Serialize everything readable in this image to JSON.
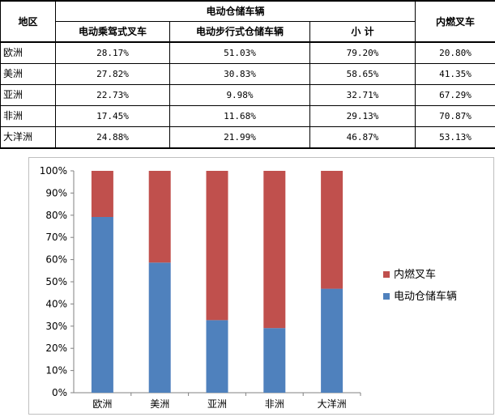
{
  "table": {
    "header": {
      "region": "地区",
      "electric_group": "电动仓储车辆",
      "ride_on": "电动乘驾式叉车",
      "walkie": "电动步行式仓储车辆",
      "subtotal": "小 计",
      "ice": "内燃叉车"
    },
    "rows": [
      {
        "region": "欧洲",
        "ride_on": "28.17%",
        "walkie": "51.03%",
        "subtotal": "79.20%",
        "ice": "20.80%"
      },
      {
        "region": "美洲",
        "ride_on": "27.82%",
        "walkie": "30.83%",
        "subtotal": "58.65%",
        "ice": "41.35%"
      },
      {
        "region": "亚洲",
        "ride_on": "22.73%",
        "walkie": "9.98%",
        "subtotal": "32.71%",
        "ice": "67.29%"
      },
      {
        "region": "非洲",
        "ride_on": "17.45%",
        "walkie": "11.68%",
        "subtotal": "29.13%",
        "ice": "70.87%"
      },
      {
        "region": "大洋洲",
        "ride_on": "24.88%",
        "walkie": "21.99%",
        "subtotal": "46.87%",
        "ice": "53.13%"
      }
    ]
  },
  "chart_data": {
    "type": "bar",
    "stacked": true,
    "categories": [
      "欧洲",
      "美洲",
      "亚洲",
      "非洲",
      "大洋洲"
    ],
    "series": [
      {
        "name": "电动仓储车辆",
        "color": "#4f81bd",
        "values": [
          79.2,
          58.65,
          32.71,
          29.13,
          46.87
        ]
      },
      {
        "name": "内燃叉车",
        "color": "#c0504d",
        "values": [
          20.8,
          41.35,
          67.29,
          70.87,
          53.13
        ]
      }
    ],
    "yticks": [
      "0%",
      "10%",
      "20%",
      "30%",
      "40%",
      "50%",
      "60%",
      "70%",
      "80%",
      "90%",
      "100%"
    ],
    "ylim": [
      0,
      100
    ],
    "legend": [
      {
        "name": "内燃叉车",
        "color": "#c0504d"
      },
      {
        "name": "电动仓储车辆",
        "color": "#4f81bd"
      }
    ],
    "legend_position": "right",
    "grid": false
  }
}
